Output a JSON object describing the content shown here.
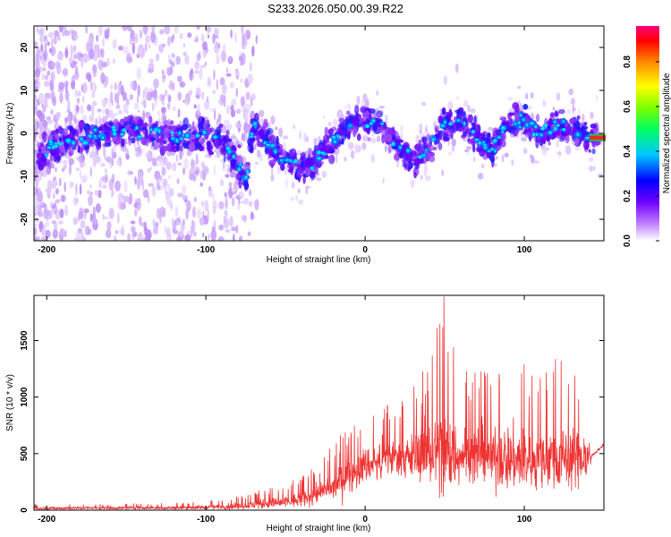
{
  "title": "S233.2026.050.00.39.R22",
  "chart_data": [
    {
      "type": "heatmap",
      "xlabel": "Height of straight line (km)",
      "ylabel": "Frequency (Hz)",
      "xlim": [
        -208,
        150
      ],
      "ylim": [
        -25,
        25
      ],
      "xticks": [
        "-200",
        "-100",
        "0",
        "100"
      ],
      "xtick_values": [
        -200,
        -100,
        0,
        100
      ],
      "yticks": [
        "20",
        "10",
        "0",
        "-10",
        "-20"
      ],
      "ytick_values": [
        20,
        10,
        0,
        -10,
        -20
      ],
      "ridge": {
        "x": [
          -205,
          -190,
          -170,
          -150,
          -130,
          -110,
          -100,
          -90,
          -85,
          -80,
          -75,
          -70,
          -60,
          -50,
          -40,
          -30,
          -20,
          -10,
          0,
          10,
          20,
          30,
          40,
          45,
          50,
          60,
          70,
          80,
          90,
          100,
          110,
          120,
          130,
          140
        ],
        "freq_hz": [
          -5,
          -2,
          -1,
          1,
          0,
          -1,
          0,
          -2,
          -4,
          -7,
          -11,
          2,
          -3,
          -6,
          -8,
          -6,
          -2,
          2,
          3,
          2,
          -3,
          -6,
          -4,
          0,
          2,
          3,
          -1,
          -4,
          2,
          3,
          0,
          2,
          1,
          -1
        ]
      },
      "colorbar": {
        "label": "Normalized spectral amplitude",
        "ticks": [
          "0.0",
          "0.2",
          "0.4",
          "0.6",
          "0.8"
        ],
        "tick_values": [
          0.0,
          0.2,
          0.4,
          0.6,
          0.8
        ],
        "range": [
          0,
          0.96
        ],
        "colormap": [
          "#ffffff",
          "#a040ff",
          "#0000ff",
          "#00ffff",
          "#00ff00",
          "#ffff00",
          "#ff0000"
        ]
      }
    },
    {
      "type": "line",
      "xlabel": "Height of straight line (km)",
      "ylabel": "SNR (10 * v/v)",
      "xlim": [
        -208,
        150
      ],
      "ylim": [
        0,
        1900
      ],
      "xticks": [
        "-200",
        "-100",
        "0",
        "100"
      ],
      "xtick_values": [
        -200,
        -100,
        0,
        100
      ],
      "yticks": [
        "0",
        "500",
        "1000",
        "1500"
      ],
      "ytick_values": [
        0,
        500,
        1000,
        1500
      ],
      "color": "#ee3333",
      "series": [
        {
          "name": "SNR",
          "x": [
            -208,
            -180,
            -150,
            -120,
            -100,
            -90,
            -80,
            -70,
            -60,
            -50,
            -40,
            -30,
            -20,
            -10,
            0,
            10,
            20,
            30,
            40,
            50,
            60,
            70,
            80,
            90,
            100,
            110,
            120,
            130,
            140,
            150
          ],
          "mean": [
            15,
            20,
            20,
            20,
            25,
            30,
            35,
            45,
            60,
            70,
            90,
            140,
            200,
            300,
            400,
            430,
            470,
            460,
            500,
            520,
            500,
            480,
            470,
            460,
            450,
            460,
            470,
            480,
            450,
            580
          ],
          "peak": [
            50,
            60,
            60,
            70,
            80,
            100,
            130,
            160,
            200,
            250,
            300,
            400,
            600,
            750,
            900,
            950,
            1000,
            1100,
            1350,
            1890,
            1200,
            1300,
            1250,
            1400,
            1300,
            1250,
            1400,
            1300,
            1200,
            600
          ]
        }
      ]
    }
  ]
}
